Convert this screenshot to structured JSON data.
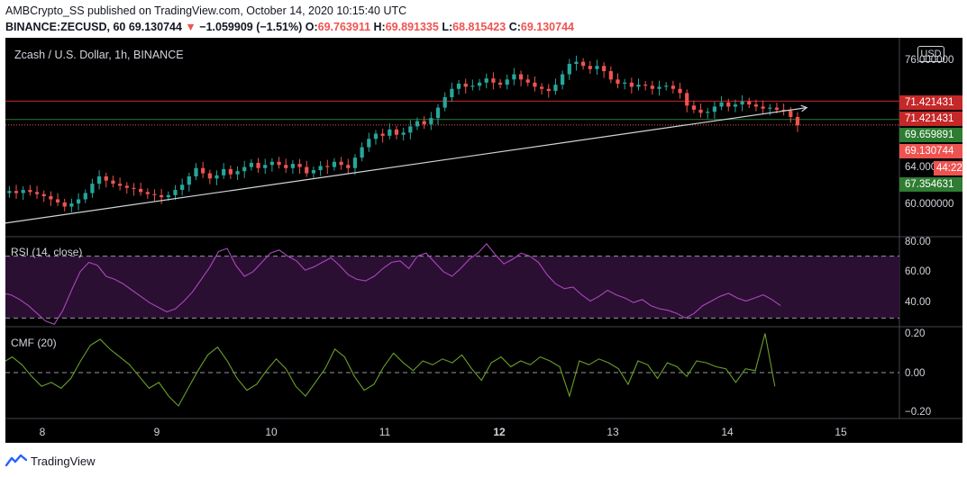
{
  "header": {
    "line1": "AMBCrypto_SS published on TradingView.com, October 14, 2020 10:15:40 UTC",
    "symbol": "BINANCE:ZECUSD, 60",
    "last": "69.130744",
    "change_arrow": "▼",
    "change": "−1.059909 (−1.51%)",
    "o_label": "O:",
    "o_value": "69.763911",
    "h_label": "H:",
    "h_value": "69.891335",
    "l_label": "L:",
    "l_value": "68.815423",
    "c_label": "C:",
    "c_value": "69.130744"
  },
  "main_panel": {
    "title": "Zcash / U.S. Dollar, 1h, BINANCE",
    "currency_badge": "USD",
    "y_ticks": [
      "76.000000",
      "64.000000",
      "60.000000"
    ],
    "price_labels": [
      {
        "text": "71.421431",
        "color": "#ef5350",
        "kind": "resistance"
      },
      {
        "text": "71.421431",
        "color": "#ef5350",
        "kind": "resistance-2"
      },
      {
        "text": "69.659891",
        "color": "#2e7d32",
        "kind": "support"
      },
      {
        "text": "69.130744",
        "color": "#ef5350",
        "kind": "last"
      },
      {
        "text": "44:22",
        "color": "#ef5350",
        "kind": "countdown"
      },
      {
        "text": "67.354631",
        "color": "#2e7d32",
        "kind": "support-2"
      }
    ],
    "colors": {
      "up": "#26a69a",
      "down": "#ef5350",
      "trendline": "#d1d4dc",
      "resistance": "#c62828",
      "support": "#2e7d32"
    }
  },
  "rsi_panel": {
    "title": "RSI (14, close)",
    "y_ticks": [
      "80.00",
      "60.00",
      "40.00"
    ],
    "color": "#ab47bc"
  },
  "cmf_panel": {
    "title": "CMF (20)",
    "y_ticks": [
      "0.20",
      "0.00",
      "−0.20"
    ],
    "color": "#6b9e2a"
  },
  "x_axis": {
    "ticks": [
      "8",
      "9",
      "10",
      "11",
      "12",
      "13",
      "14",
      "15"
    ],
    "bold_tick": "12"
  },
  "footer": {
    "brand": "TradingView"
  },
  "chart_data": [
    {
      "type": "candlestick",
      "title": "Zcash / U.S. Dollar, 1h, BINANCE",
      "x_ticks": [
        "8",
        "9",
        "10",
        "11",
        "12",
        "13",
        "14",
        "15"
      ],
      "ylim": [
        58.5,
        77.5
      ],
      "y_ticks": [
        60,
        64,
        76
      ],
      "horizontal_lines": [
        71.421431,
        69.659891,
        69.130744
      ],
      "trendline": {
        "from": {
          "x": 7.6,
          "y": 59.6
        },
        "to": {
          "x": 14.7,
          "y": 70.8
        }
      },
      "close_series_x_start": 7.65,
      "close_series_x_step": 0.0606,
      "close": [
        62.6,
        62.8,
        62.6,
        62.9,
        62.7,
        62.5,
        62.3,
        62.0,
        61.7,
        61.3,
        61.6,
        62.0,
        62.6,
        63.5,
        64.2,
        63.8,
        63.5,
        63.3,
        63.1,
        63.0,
        62.7,
        62.5,
        62.4,
        62.2,
        62.4,
        62.9,
        63.4,
        64.2,
        65.0,
        64.5,
        64.0,
        64.3,
        64.9,
        64.4,
        64.7,
        65.1,
        65.5,
        65.0,
        65.3,
        65.6,
        65.3,
        65.0,
        65.4,
        65.1,
        64.5,
        64.8,
        65.2,
        65.1,
        65.6,
        65.3,
        65.0,
        66.0,
        67.0,
        67.8,
        68.3,
        68.1,
        68.7,
        68.2,
        68.4,
        69.0,
        69.5,
        69.2,
        69.8,
        70.8,
        71.8,
        72.6,
        73.1,
        72.8,
        72.9,
        73.2,
        73.6,
        73.2,
        73.0,
        73.5,
        74.0,
        73.5,
        73.2,
        72.8,
        72.6,
        72.4,
        73.0,
        74.0,
        75.0,
        75.2,
        74.8,
        74.5,
        74.8,
        74.3,
        73.5,
        73.1,
        73.2,
        72.8,
        73.0,
        72.9,
        72.6,
        72.8,
        72.9,
        72.6,
        72.2,
        71.0,
        70.6,
        70.3,
        70.4,
        70.9,
        71.3,
        70.9,
        71.1,
        71.4,
        71.1,
        70.9,
        70.7,
        70.8,
        70.6,
        70.5,
        69.9,
        69.1
      ],
      "note": "Approximate hourly closes read from the chart, Oct 7–Oct 14, 2020"
    },
    {
      "type": "line",
      "title": "RSI (14, close)",
      "ylim": [
        25,
        82
      ],
      "y_ticks": [
        40,
        60,
        80
      ],
      "bands": [
        30,
        70
      ],
      "series": [
        {
          "values": [
            46,
            45,
            42,
            38,
            33,
            28,
            26,
            35,
            48,
            60,
            66,
            64,
            57,
            55,
            52,
            48,
            44,
            40,
            37,
            34,
            36,
            41,
            47,
            55,
            63,
            73,
            75,
            64,
            57,
            60,
            66,
            72,
            74,
            70,
            67,
            61,
            63,
            66,
            69,
            64,
            58,
            55,
            54,
            57,
            62,
            66,
            67,
            62,
            70,
            72,
            66,
            60,
            57,
            62,
            68,
            72,
            78,
            71,
            65,
            68,
            72,
            70,
            66,
            58,
            52,
            49,
            50,
            45,
            41,
            44,
            48,
            45,
            43,
            40,
            42,
            38,
            36,
            35,
            33,
            30,
            33,
            38,
            41,
            44,
            46,
            43,
            41,
            43,
            45,
            42,
            38
          ]
        }
      ]
    },
    {
      "type": "line",
      "title": "CMF (20)",
      "ylim": [
        -0.23,
        0.23
      ],
      "y_ticks": [
        0.2,
        0.0,
        -0.2
      ],
      "series": [
        {
          "values": [
            0.05,
            0.08,
            0.04,
            -0.02,
            -0.07,
            -0.05,
            -0.08,
            -0.03,
            0.06,
            0.14,
            0.17,
            0.12,
            0.08,
            0.04,
            -0.02,
            -0.08,
            -0.05,
            -0.12,
            -0.17,
            -0.08,
            0.01,
            0.09,
            0.13,
            0.06,
            -0.03,
            -0.09,
            -0.06,
            0.01,
            0.07,
            0.02,
            -0.07,
            -0.12,
            -0.05,
            0.02,
            0.12,
            0.08,
            -0.02,
            -0.09,
            -0.06,
            0.03,
            0.1,
            0.05,
            0.01,
            0.06,
            0.04,
            0.07,
            0.05,
            0.09,
            0.02,
            -0.04,
            0.05,
            0.08,
            0.03,
            0.06,
            0.04,
            0.08,
            0.06,
            0.03,
            -0.12,
            0.06,
            0.04,
            0.07,
            0.05,
            0.02,
            -0.06,
            0.06,
            0.04,
            -0.03,
            0.05,
            0.03,
            -0.02,
            0.06,
            0.05,
            0.03,
            0.02,
            -0.05,
            0.02,
            0.01,
            0.2,
            -0.07
          ]
        }
      ]
    }
  ]
}
